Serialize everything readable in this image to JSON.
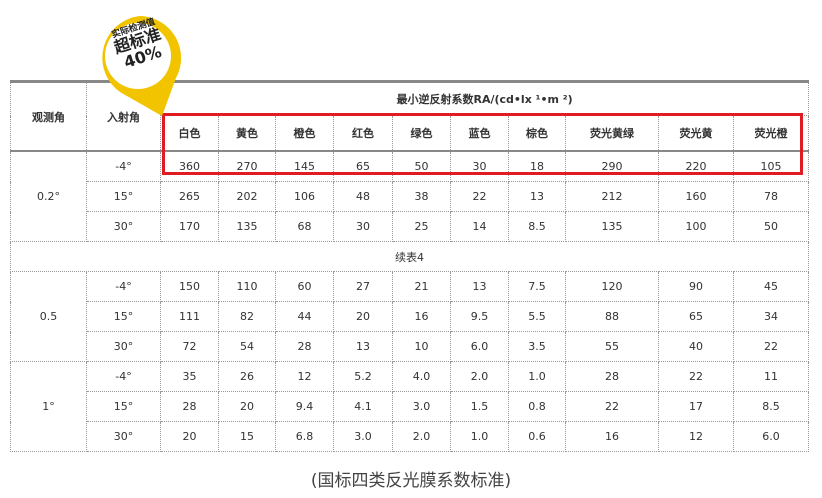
{
  "badge": {
    "line1": "实际检测值",
    "line2": "超标准",
    "line3": "40%",
    "color": "#f2c400"
  },
  "header": {
    "observe_angle": "观测角",
    "incident_angle": "入射角",
    "coef_title": "最小逆反射系数RA/(cd•lx ¹•m ²)",
    "colors": [
      "白色",
      "黄色",
      "橙色",
      "红色",
      "绿色",
      "蓝色",
      "棕色",
      "荧光黄绿",
      "荧光黄",
      "荧光橙"
    ]
  },
  "highlight_color": "#e01b22",
  "continued_label": "续表4",
  "groups": [
    {
      "observe": "0.2°",
      "rows": [
        {
          "incident": "-4°",
          "values": [
            "360",
            "270",
            "145",
            "65",
            "50",
            "30",
            "18",
            "290",
            "220",
            "105"
          ]
        },
        {
          "incident": "15°",
          "values": [
            "265",
            "202",
            "106",
            "48",
            "38",
            "22",
            "13",
            "212",
            "160",
            "78"
          ]
        },
        {
          "incident": "30°",
          "values": [
            "170",
            "135",
            "68",
            "30",
            "25",
            "14",
            "8.5",
            "135",
            "100",
            "50"
          ]
        }
      ]
    },
    {
      "observe": "0.5",
      "rows": [
        {
          "incident": "-4°",
          "values": [
            "150",
            "110",
            "60",
            "27",
            "21",
            "13",
            "7.5",
            "120",
            "90",
            "45"
          ]
        },
        {
          "incident": "15°",
          "values": [
            "111",
            "82",
            "44",
            "20",
            "16",
            "9.5",
            "5.5",
            "88",
            "65",
            "34"
          ]
        },
        {
          "incident": "30°",
          "values": [
            "72",
            "54",
            "28",
            "13",
            "10",
            "6.0",
            "3.5",
            "55",
            "40",
            "22"
          ]
        }
      ]
    },
    {
      "observe": "1°",
      "rows": [
        {
          "incident": "-4°",
          "values": [
            "35",
            "26",
            "12",
            "5.2",
            "4.0",
            "2.0",
            "1.0",
            "28",
            "22",
            "11"
          ]
        },
        {
          "incident": "15°",
          "values": [
            "28",
            "20",
            "9.4",
            "4.1",
            "3.0",
            "1.5",
            "0.8",
            "22",
            "17",
            "8.5"
          ]
        },
        {
          "incident": "30°",
          "values": [
            "20",
            "15",
            "6.8",
            "3.0",
            "2.0",
            "1.0",
            "0.6",
            "16",
            "12",
            "6.0"
          ]
        }
      ]
    }
  ],
  "caption": "(国标四类反光膜系数标准)"
}
